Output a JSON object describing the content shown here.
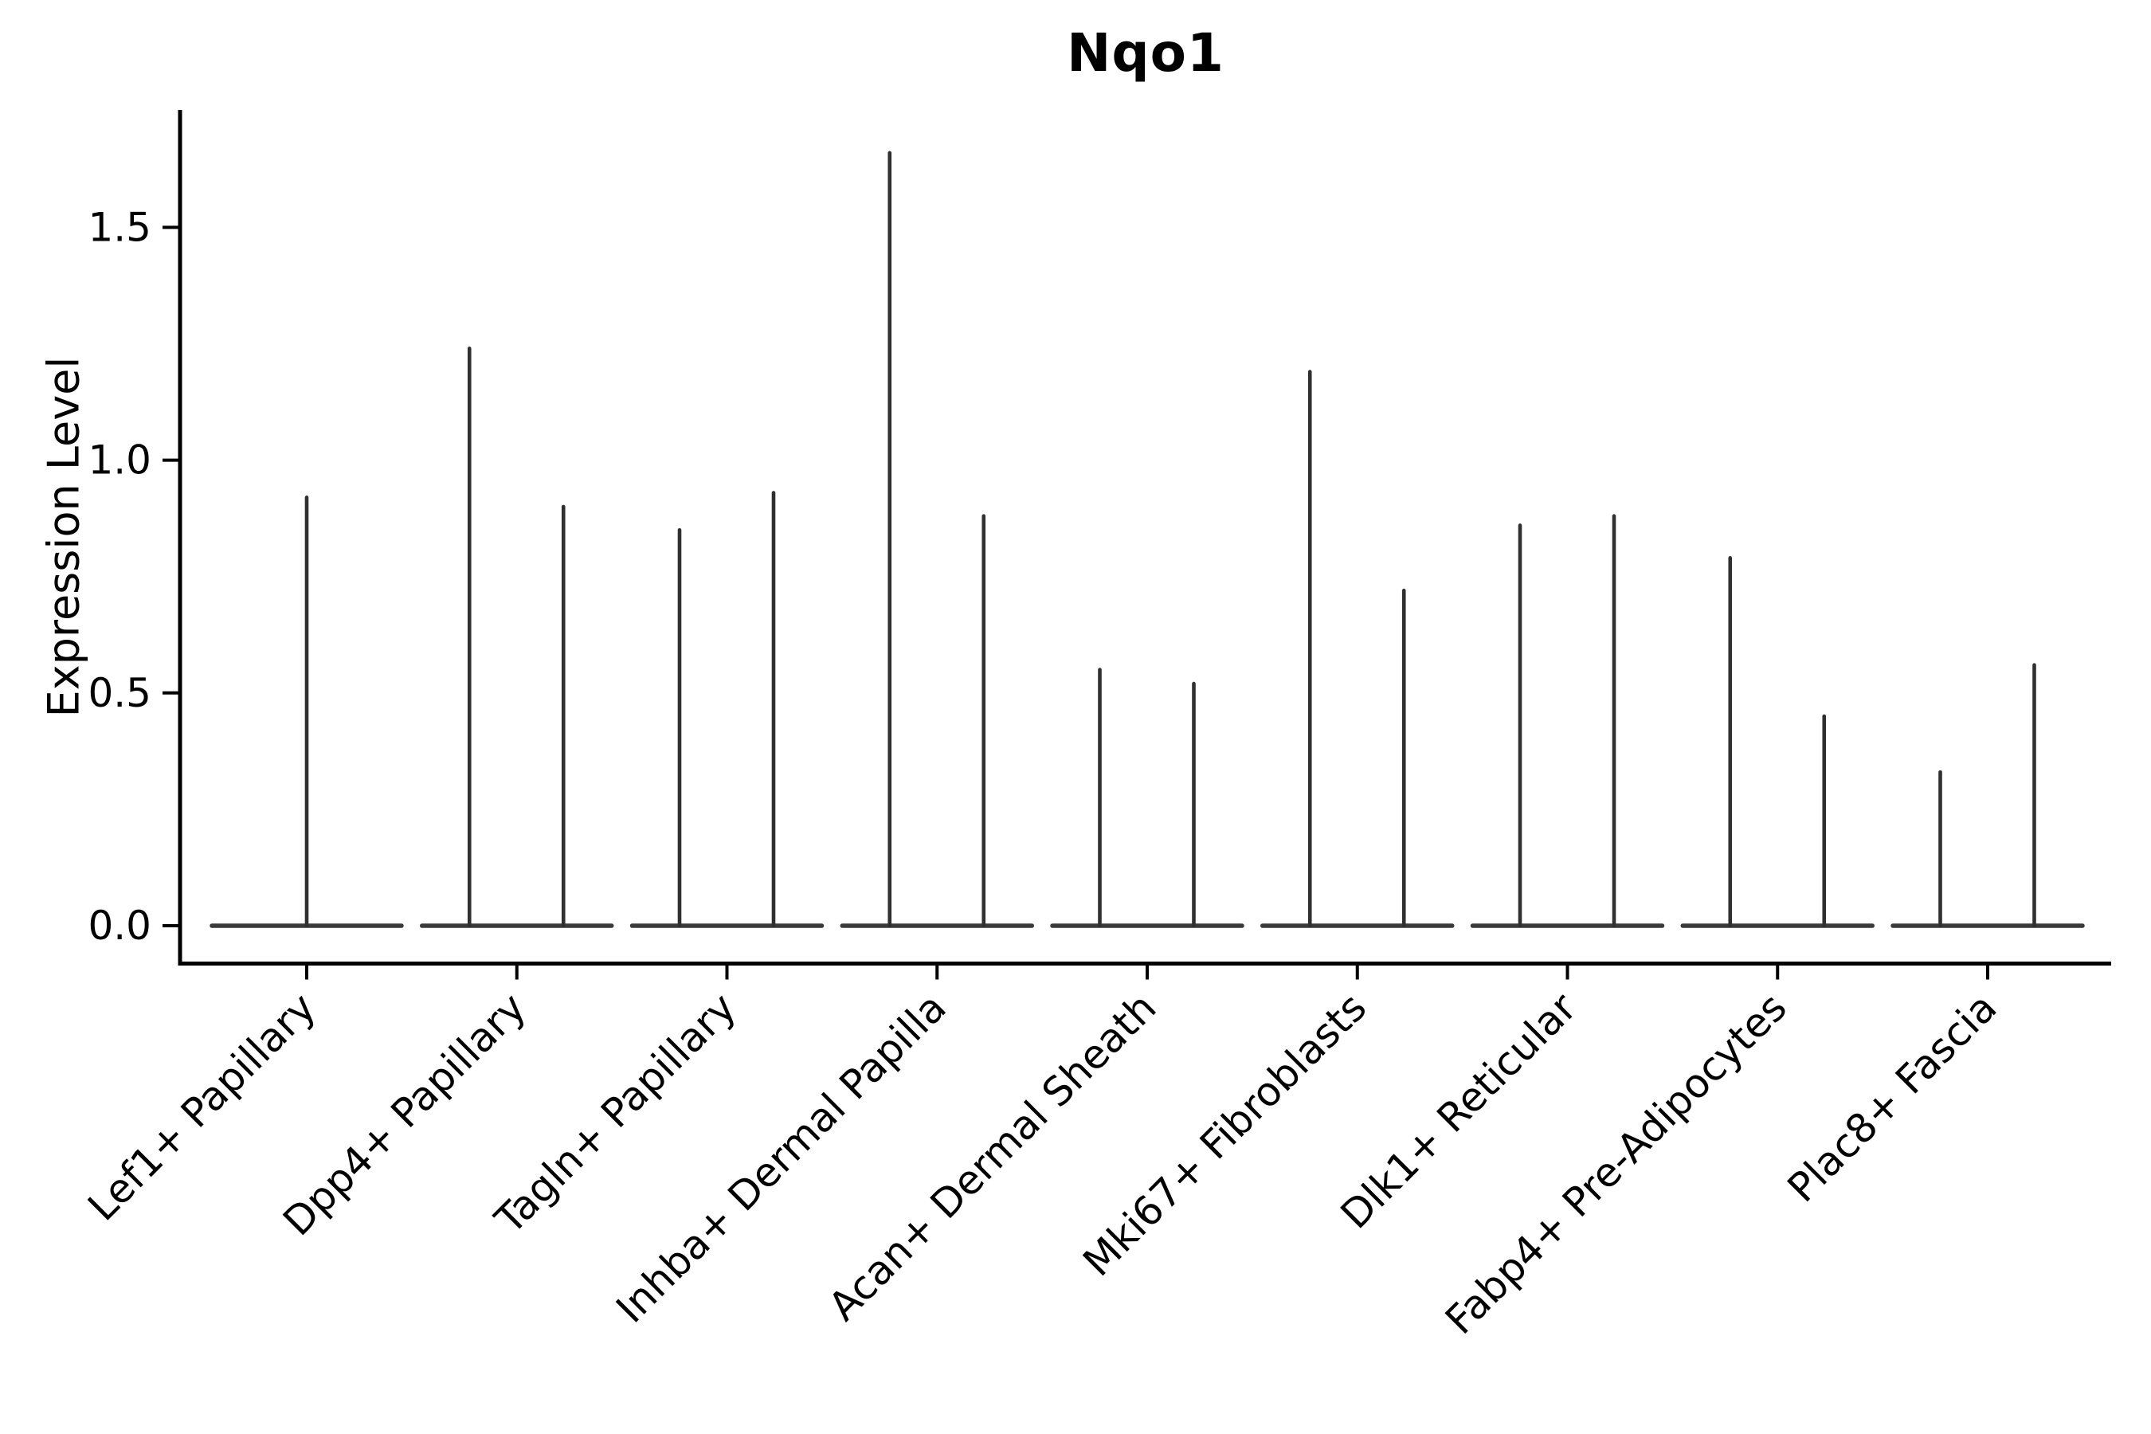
{
  "title": "Nqo1",
  "y_axis": {
    "label": "Expression Level",
    "tick_labels": [
      "0.0",
      "0.5",
      "1.0",
      "1.5"
    ],
    "tick_values": [
      0.0,
      0.5,
      1.0,
      1.5
    ]
  },
  "chart_data": {
    "type": "violin",
    "title": "Nqo1",
    "xlabel": "",
    "ylabel": "Expression Level",
    "ylim": [
      0.0,
      1.75
    ],
    "grid": false,
    "legend": "none",
    "categories": [
      "Lef1+ Papillary",
      "Dpp4+ Papillary",
      "Tagln+ Papillary",
      "Inhba+ Dermal Papilla",
      "Acan+ Dermal Sheath",
      "Mki67+ Fibroblasts",
      "Dlk1+ Reticular",
      "Fabp4+ Pre-Adipocytes",
      "Plac8+ Fascia"
    ],
    "baseline_value": 0.0,
    "violins": [
      {
        "category": "Lef1+ Papillary",
        "spikes": [
          {
            "pos": "center",
            "max": 0.92
          }
        ]
      },
      {
        "category": "Dpp4+ Papillary",
        "spikes": [
          {
            "pos": "left",
            "max": 1.24
          },
          {
            "pos": "right",
            "max": 0.9
          }
        ]
      },
      {
        "category": "Tagln+ Papillary",
        "spikes": [
          {
            "pos": "left",
            "max": 0.85
          },
          {
            "pos": "right",
            "max": 0.93
          }
        ]
      },
      {
        "category": "Inhba+ Dermal Papilla",
        "spikes": [
          {
            "pos": "left",
            "max": 1.66
          },
          {
            "pos": "right",
            "max": 0.88
          }
        ]
      },
      {
        "category": "Acan+ Dermal Sheath",
        "spikes": [
          {
            "pos": "left",
            "max": 0.55
          },
          {
            "pos": "right",
            "max": 0.52
          }
        ]
      },
      {
        "category": "Mki67+ Fibroblasts",
        "spikes": [
          {
            "pos": "left",
            "max": 1.19
          },
          {
            "pos": "right",
            "max": 0.72
          }
        ]
      },
      {
        "category": "Dlk1+ Reticular",
        "spikes": [
          {
            "pos": "left",
            "max": 0.86
          },
          {
            "pos": "right",
            "max": 0.88
          }
        ]
      },
      {
        "category": "Fabp4+ Pre-Adipocytes",
        "spikes": [
          {
            "pos": "left",
            "max": 0.79
          },
          {
            "pos": "right",
            "max": 0.45
          }
        ]
      },
      {
        "category": "Plac8+ Fascia",
        "spikes": [
          {
            "pos": "left",
            "max": 0.33
          },
          {
            "pos": "right",
            "max": 0.56
          }
        ]
      }
    ],
    "colors": {
      "violin_stroke": "#303030",
      "baseline_stroke": "#3a3a3a",
      "axis": "#000000",
      "background": "#ffffff"
    }
  }
}
